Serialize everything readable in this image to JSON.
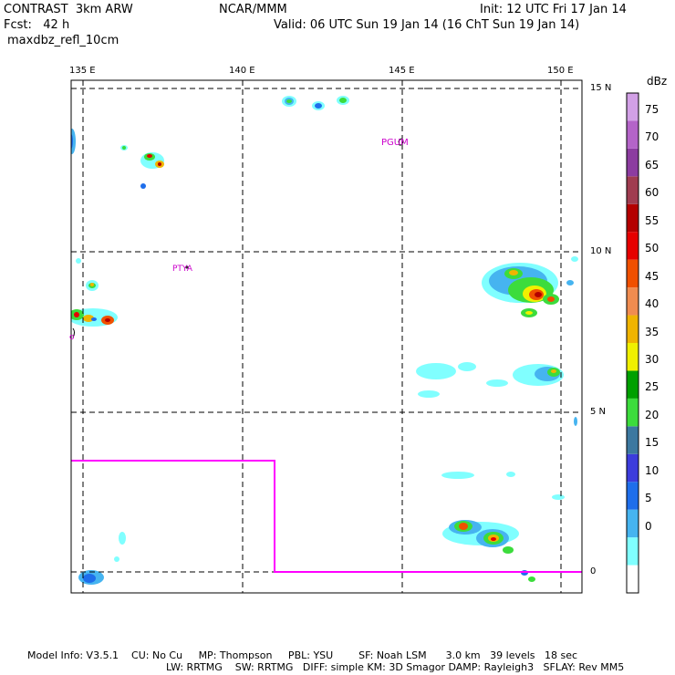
{
  "header": {
    "line1_left": "CONTRAST  3km ARW",
    "line1_center": "NCAR/MMM",
    "line1_right": "Init: 12 UTC Fri 17 Jan 14",
    "line2_left": "Fcst:   42 h",
    "line2_right": "Valid: 06 UTC Sun 19 Jan 14 (16 ChT Sun 19 Jan 14)",
    "line3_left": "maxdbz_refl_10cm"
  },
  "map": {
    "lon_labels": [
      "135 E",
      "140 E",
      "145 E",
      "150 E"
    ],
    "lat_labels": [
      "15 N",
      "10 N",
      "5 N",
      "0"
    ],
    "station_labels": [
      "PGUM",
      "PTYA"
    ],
    "boundary_color": "#ff00ff",
    "station_color": "#cc00cc"
  },
  "colorbar": {
    "unit": "dBz",
    "ticks": [
      "75",
      "70",
      "65",
      "60",
      "55",
      "50",
      "45",
      "40",
      "35",
      "30",
      "25",
      "20",
      "15",
      "10",
      "5",
      "0"
    ],
    "colors": [
      "#ffffff",
      "#80ffff",
      "#46b4f0",
      "#1e6eeb",
      "#3c3cdc",
      "#3c78a0",
      "#3cdc3c",
      "#00a000",
      "#f0f000",
      "#f0b400",
      "#f08c50",
      "#f05000",
      "#e60000",
      "#b40000",
      "#a03c50",
      "#8c3ca0",
      "#b464c8",
      "#d2a0e6"
    ]
  },
  "footer": {
    "line1": "Model Info: V3.5.1    CU: No Cu     MP: Thompson     PBL: YSU        SF: Noah LSM      3.0 km   39 levels   18 sec",
    "line2": "LW: RRTMG    SW: RRTMG   DIFF: simple KM: 3D Smagor DAMP: Rayleigh3   SFLAY: Rev MM5"
  }
}
